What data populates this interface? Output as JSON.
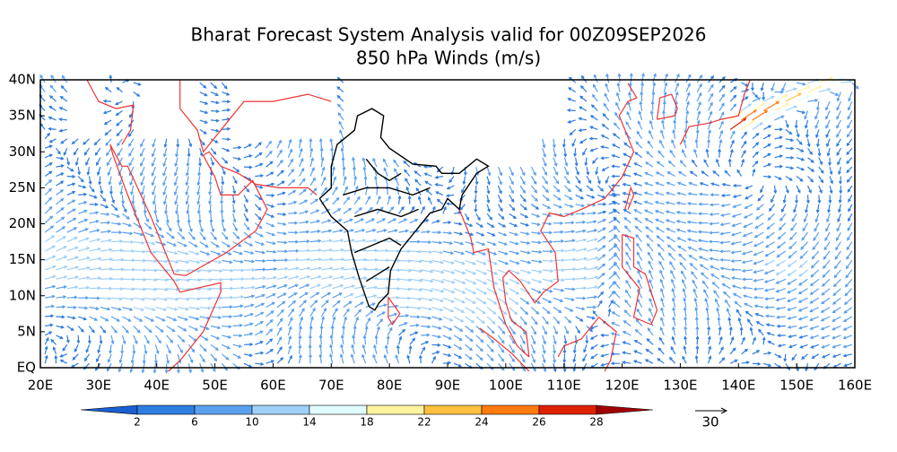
{
  "header": {
    "title": "Bharat Forecast System Analysis valid for 00Z09SEP2026",
    "subtitle": "850 hPa Winds (m/s)"
  },
  "map": {
    "lat_labels": [
      "EQ",
      "5N",
      "10N",
      "15N",
      "20N",
      "25N",
      "30N",
      "35N",
      "40N"
    ],
    "lon_labels": [
      "20E",
      "30E",
      "40E",
      "50E",
      "60E",
      "70E",
      "80E",
      "90E",
      "100E",
      "110E",
      "120E",
      "130E",
      "140E",
      "150E",
      "160E"
    ]
  },
  "colorbar": {
    "labels": [
      2,
      6,
      10,
      14,
      18,
      22,
      24,
      26,
      28
    ],
    "colors": [
      "#1a5fd0",
      "#2f7de0",
      "#5aa0ee",
      "#9fd0f8",
      "#e0fcff",
      "#fff3a0",
      "#ffc040",
      "#ff7a10",
      "#e02000",
      "#a00000"
    ]
  },
  "reference_vector": {
    "label": "30"
  }
}
